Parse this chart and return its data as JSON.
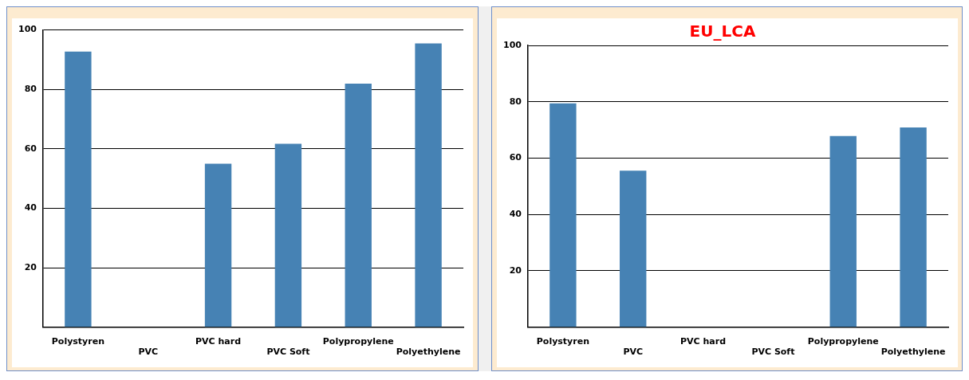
{
  "chart_data": [
    {
      "type": "bar",
      "categories": [
        "Polystyren",
        "PVC",
        "PVC hard",
        "PVC Soft",
        "Polypropylene",
        "Polyethylene"
      ],
      "values": [
        92.7,
        null,
        55.0,
        61.7,
        81.9,
        95.5
      ],
      "color": "#4682b4",
      "ylim": [
        0,
        100
      ],
      "yticks": [
        20,
        40,
        60,
        80,
        100
      ],
      "grid": "y"
    },
    {
      "type": "bar",
      "title": "EU_LCA",
      "categories": [
        "Polystyren",
        "PVC",
        "PVC hard",
        "PVC Soft",
        "Polypropylene",
        "Polyethylene"
      ],
      "values": [
        79.4,
        55.5,
        null,
        null,
        67.8,
        70.9
      ],
      "color": "#4682b4",
      "ylim": [
        0,
        100
      ],
      "yticks": [
        20,
        40,
        60,
        80,
        100
      ],
      "grid": "y"
    }
  ]
}
